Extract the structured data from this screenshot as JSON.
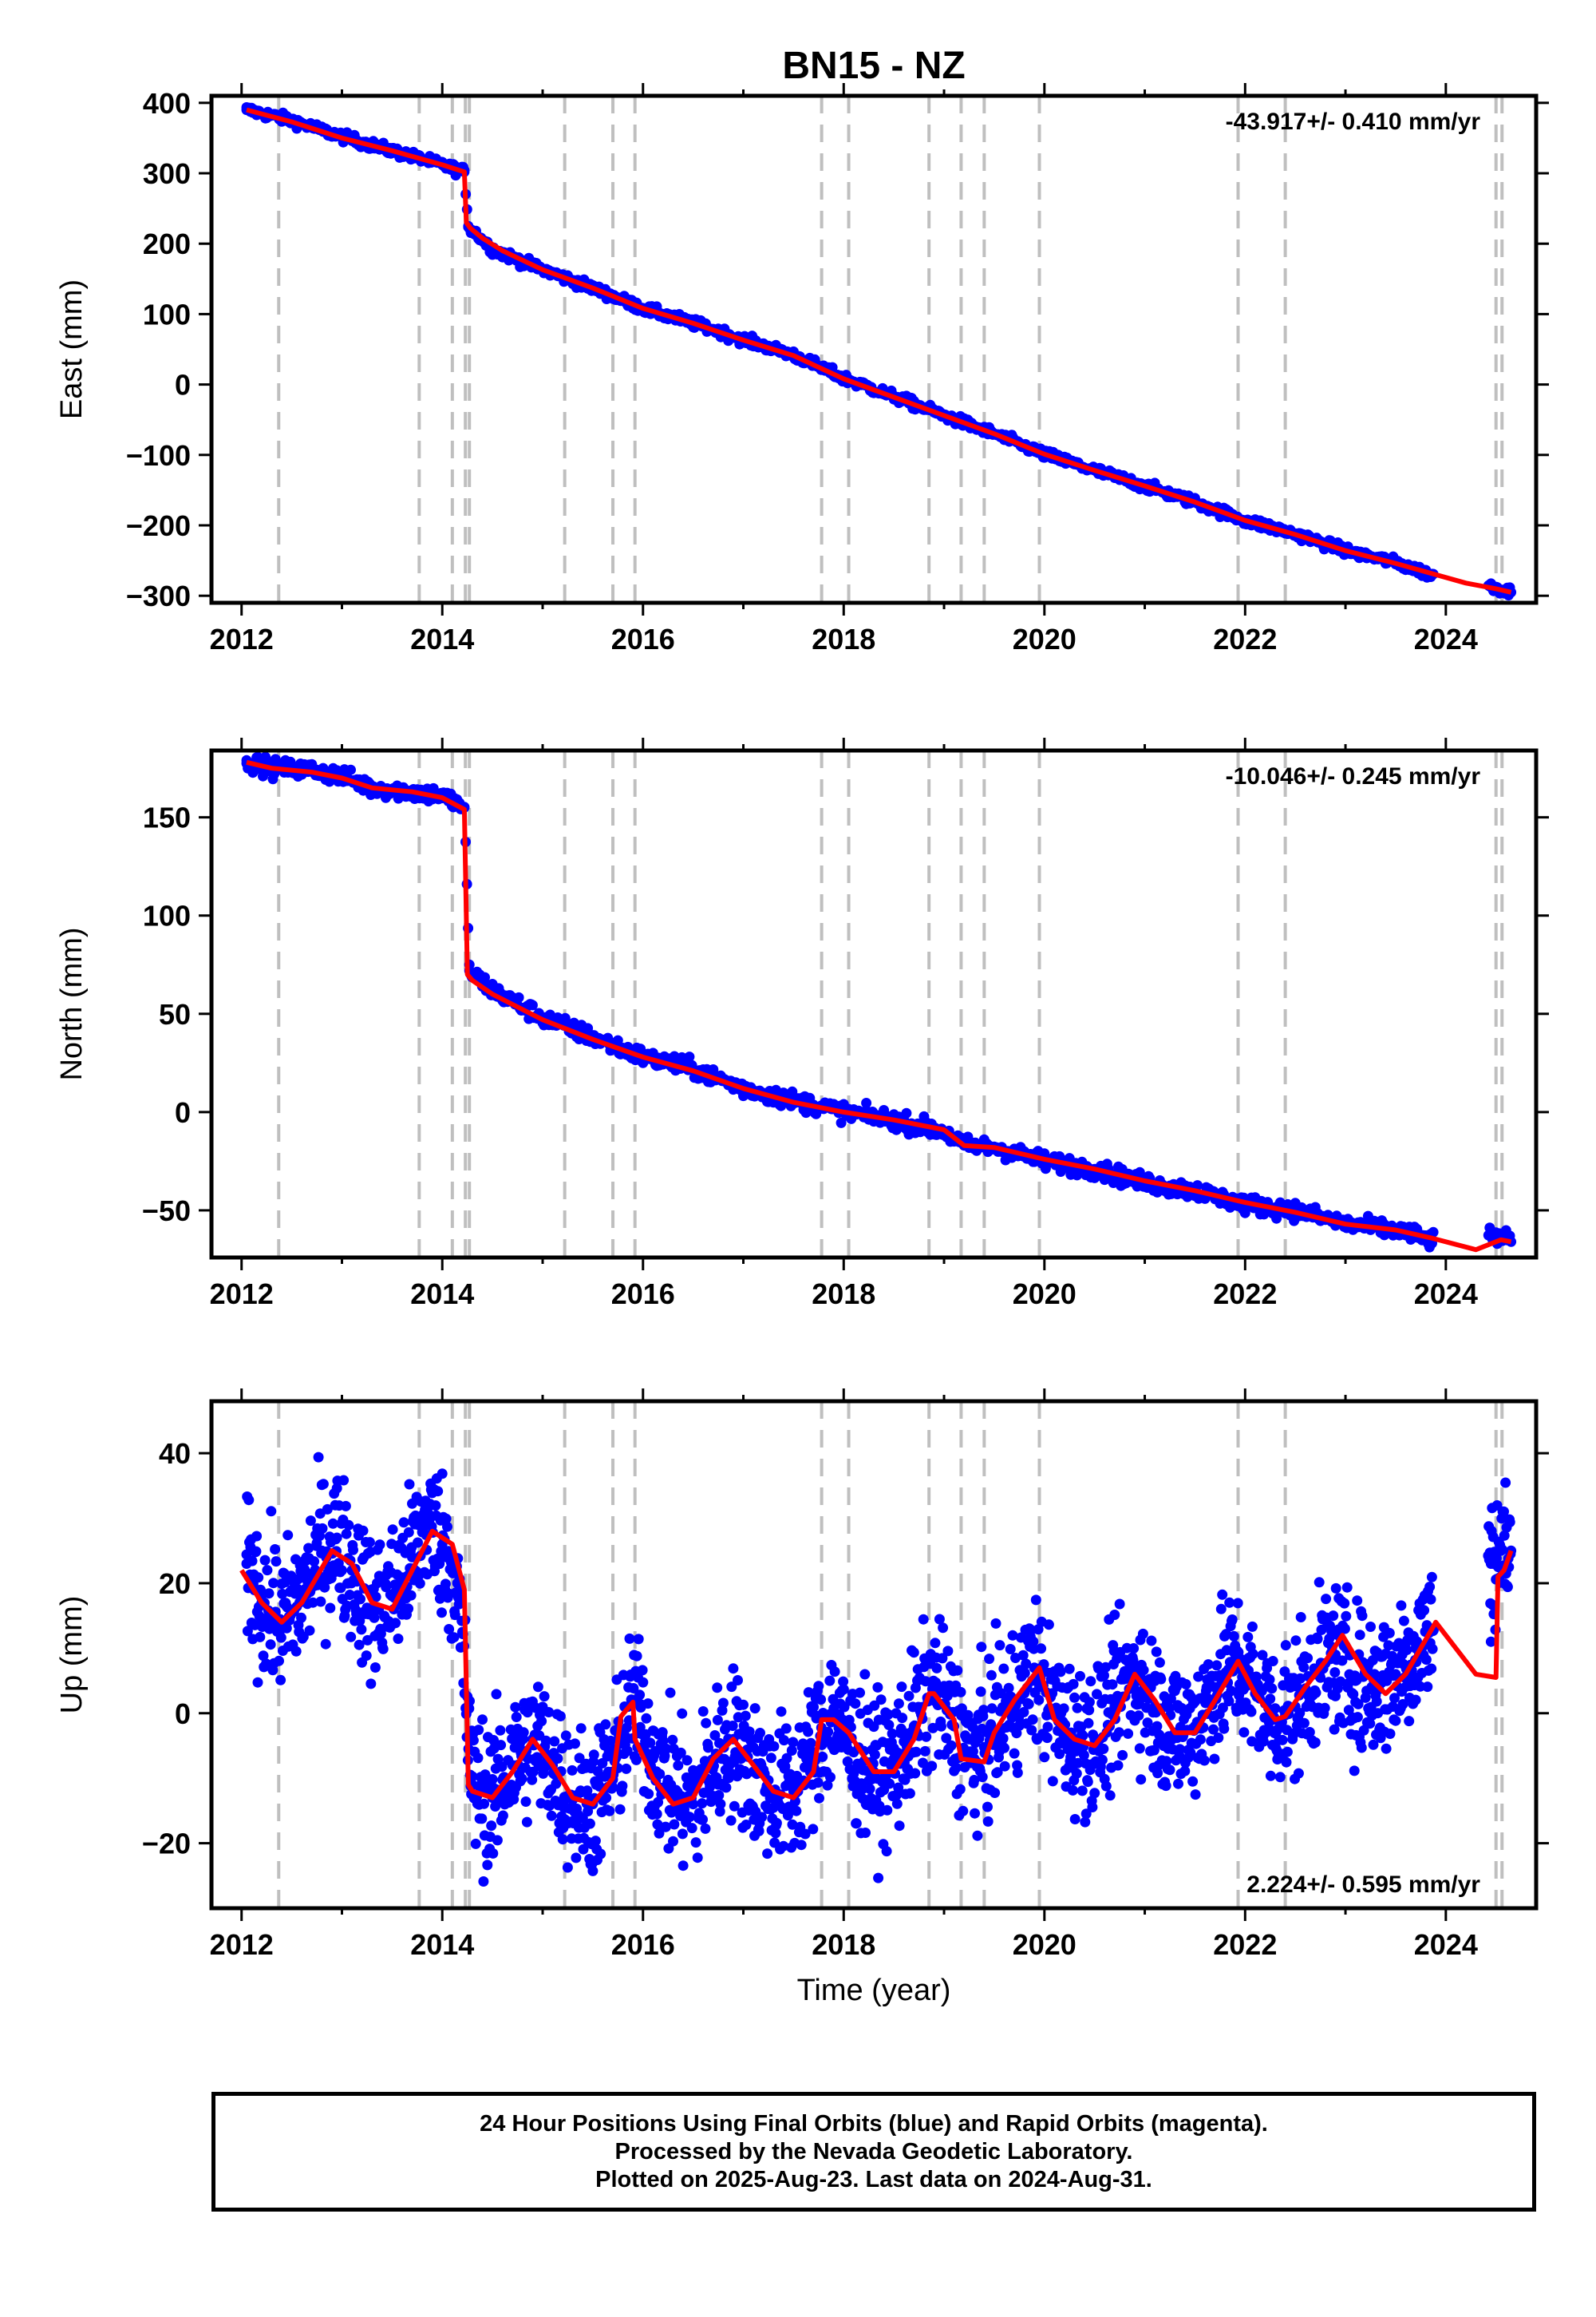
{
  "title": "BN15 - NZ",
  "colors": {
    "final_orbits": "#0000ff",
    "model": "#ff0000",
    "event_lines": "#bfbfbf",
    "frame": "#000000"
  },
  "chart_data": [
    {
      "type": "scatter",
      "ylabel": "East (mm)",
      "xlabel": "",
      "xlim": [
        2011.7,
        2024.9
      ],
      "ylim": [
        -310,
        410
      ],
      "xticks": [
        2012,
        2014,
        2016,
        2018,
        2020,
        2022,
        2024
      ],
      "yticks": [
        -300,
        -200,
        -100,
        0,
        100,
        200,
        300,
        400
      ],
      "ytick_labels": [
        "−300",
        "−200",
        "−100",
        "0",
        "100",
        "200",
        "300",
        "400"
      ],
      "annotation": "-43.917+/- 0.410 mm/yr",
      "annotation_position": "top-right",
      "series": [
        {
          "name": "Final Orbits",
          "kind": "points",
          "color": "#0000ff",
          "x": [
            2012.05,
            2012.5,
            2013.0,
            2013.5,
            2014.0,
            2014.22,
            2014.26,
            2014.5,
            2015.0,
            2015.5,
            2016.0,
            2016.5,
            2017.0,
            2017.5,
            2018.0,
            2018.5,
            2019.0,
            2019.5,
            2020.0,
            2020.5,
            2021.0,
            2021.5,
            2022.0,
            2022.5,
            2023.0,
            2023.5,
            2023.85,
            2024.5,
            2024.65
          ],
          "y": [
            390,
            375,
            352,
            332,
            312,
            302,
            225,
            192,
            163,
            137,
            108,
            87,
            64,
            42,
            9,
            -17,
            -44,
            -70,
            -99,
            -122,
            -144,
            -167,
            -193,
            -212,
            -236,
            -253,
            -270,
            -288,
            -295
          ]
        },
        {
          "name": "Model",
          "kind": "line",
          "color": "#ff0000",
          "x": [
            2012.05,
            2012.5,
            2013.0,
            2013.5,
            2014.0,
            2014.22,
            2014.24,
            2014.28,
            2014.4,
            2014.6,
            2015.0,
            2015.5,
            2016.0,
            2016.5,
            2017.0,
            2017.5,
            2018.0,
            2018.5,
            2019.0,
            2019.5,
            2020.0,
            2020.5,
            2021.0,
            2021.5,
            2022.0,
            2022.5,
            2023.0,
            2023.5,
            2023.85,
            2024.2,
            2024.5,
            2024.65
          ],
          "y": [
            390,
            373,
            350,
            332,
            312,
            302,
            230,
            222,
            208,
            190,
            163,
            137,
            108,
            87,
            63,
            41,
            8,
            -18,
            -44,
            -70,
            -99,
            -122,
            -144,
            -167,
            -193,
            -213,
            -236,
            -254,
            -268,
            -282,
            -290,
            -295
          ]
        }
      ],
      "event_lines": [
        2012.37,
        2013.77,
        2014.1,
        2014.23,
        2014.27,
        2015.22,
        2015.7,
        2015.92,
        2017.78,
        2018.05,
        2018.85,
        2019.17,
        2019.4,
        2019.95,
        2021.93,
        2022.4,
        2024.5,
        2024.56
      ]
    },
    {
      "type": "scatter",
      "ylabel": "North (mm)",
      "xlabel": "",
      "xlim": [
        2011.7,
        2024.9
      ],
      "ylim": [
        -74,
        184
      ],
      "xticks": [
        2012,
        2014,
        2016,
        2018,
        2020,
        2022,
        2024
      ],
      "yticks": [
        -50,
        0,
        50,
        100,
        150
      ],
      "ytick_labels": [
        "−50",
        "0",
        "50",
        "100",
        "150"
      ],
      "annotation": "-10.046+/- 0.245 mm/yr",
      "annotation_position": "top-right",
      "series": [
        {
          "name": "Final Orbits",
          "kind": "points",
          "color": "#0000ff",
          "x": [
            2012.05,
            2012.3,
            2012.7,
            2013.0,
            2013.3,
            2013.7,
            2014.0,
            2014.22,
            2014.27,
            2014.5,
            2015.0,
            2015.5,
            2016.0,
            2016.5,
            2017.0,
            2017.5,
            2018.0,
            2018.5,
            2019.0,
            2019.2,
            2019.5,
            2020.0,
            2020.5,
            2021.0,
            2021.5,
            2022.0,
            2022.5,
            2023.0,
            2023.5,
            2023.85,
            2024.5,
            2024.65
          ],
          "y": [
            179,
            175,
            174,
            171,
            165,
            163,
            161,
            155,
            72,
            62,
            48,
            38,
            28,
            22,
            12,
            6,
            0,
            -4,
            -10,
            -17,
            -18,
            -25,
            -29,
            -36,
            -40,
            -47,
            -50,
            -57,
            -60,
            -65,
            -63,
            -66
          ]
        },
        {
          "name": "Model",
          "kind": "line",
          "color": "#ff0000",
          "x": [
            2012.05,
            2012.3,
            2012.7,
            2013.0,
            2013.3,
            2013.7,
            2014.0,
            2014.22,
            2014.25,
            2014.3,
            2014.5,
            2015.0,
            2015.5,
            2016.0,
            2016.5,
            2017.0,
            2017.5,
            2018.0,
            2018.5,
            2019.0,
            2019.2,
            2019.5,
            2020.0,
            2020.5,
            2021.0,
            2021.5,
            2022.0,
            2022.5,
            2023.0,
            2023.5,
            2023.85,
            2024.3,
            2024.55,
            2024.65
          ],
          "y": [
            178,
            175,
            173,
            170,
            165,
            163,
            160,
            154,
            70,
            67,
            60,
            47,
            37,
            28,
            21,
            12,
            5,
            0,
            -4,
            -9,
            -17,
            -18,
            -24,
            -29,
            -35,
            -40,
            -46,
            -51,
            -57,
            -60,
            -64,
            -70,
            -65,
            -66
          ]
        }
      ],
      "event_lines": [
        2012.37,
        2013.77,
        2014.1,
        2014.23,
        2014.27,
        2015.22,
        2015.7,
        2015.92,
        2017.78,
        2018.05,
        2018.85,
        2019.17,
        2019.4,
        2019.95,
        2021.93,
        2022.4,
        2024.5,
        2024.56
      ]
    },
    {
      "type": "scatter",
      "ylabel": "Up (mm)",
      "xlabel": "Time (year)",
      "xlim": [
        2011.7,
        2024.9
      ],
      "ylim": [
        -30,
        48
      ],
      "xticks": [
        2012,
        2014,
        2016,
        2018,
        2020,
        2022,
        2024
      ],
      "yticks": [
        -20,
        0,
        20,
        40
      ],
      "ytick_labels": [
        "−20",
        "0",
        "20",
        "40"
      ],
      "annotation": "2.224+/- 0.595 mm/yr",
      "annotation_position": "bottom-right",
      "series": [
        {
          "name": "Final Orbits",
          "kind": "points",
          "color": "#0000ff",
          "x": [
            2012.05,
            2012.2,
            2012.4,
            2012.6,
            2012.8,
            2012.95,
            2013.1,
            2013.3,
            2013.5,
            2013.7,
            2013.85,
            2014.0,
            2014.15,
            2014.3,
            2014.5,
            2014.7,
            2014.9,
            2015.1,
            2015.3,
            2015.5,
            2015.7,
            2015.9,
            2016.1,
            2016.3,
            2016.5,
            2016.7,
            2016.9,
            2017.1,
            2017.3,
            2017.5,
            2017.7,
            2017.9,
            2018.1,
            2018.3,
            2018.5,
            2018.7,
            2018.9,
            2019.1,
            2019.3,
            2019.5,
            2019.7,
            2019.9,
            2020.1,
            2020.3,
            2020.5,
            2020.7,
            2020.9,
            2021.1,
            2021.3,
            2021.5,
            2021.7,
            2021.9,
            2022.1,
            2022.3,
            2022.5,
            2022.7,
            2022.9,
            2023.1,
            2023.3,
            2023.5,
            2023.7,
            2023.85,
            2024.45,
            2024.55,
            2024.65
          ],
          "y": [
            23,
            17,
            14,
            18,
            25,
            27,
            22,
            16,
            18,
            24,
            30,
            26,
            20,
            -11,
            -13,
            -8,
            -4,
            -8,
            -13,
            -14,
            -9,
            2,
            -7,
            -12,
            -14,
            -8,
            -4,
            -9,
            -12,
            -12,
            -6,
            0,
            -6,
            -9,
            -8,
            -2,
            4,
            -2,
            -7,
            -3,
            2,
            7,
            0,
            -4,
            -4,
            1,
            6,
            1,
            -3,
            -2,
            4,
            8,
            3,
            -1,
            1,
            6,
            9,
            5,
            4,
            6,
            10,
            13,
            23,
            25,
            25
          ]
        },
        {
          "name": "Model",
          "kind": "line",
          "color": "#ff0000",
          "x": [
            2012.0,
            2012.2,
            2012.4,
            2012.6,
            2012.9,
            2013.1,
            2013.3,
            2013.5,
            2013.7,
            2013.9,
            2014.1,
            2014.22,
            2014.26,
            2014.3,
            2014.5,
            2014.7,
            2014.9,
            2015.1,
            2015.3,
            2015.5,
            2015.7,
            2015.78,
            2015.9,
            2015.92,
            2016.1,
            2016.3,
            2016.5,
            2016.7,
            2016.9,
            2017.1,
            2017.3,
            2017.5,
            2017.7,
            2017.78,
            2017.9,
            2018.05,
            2018.3,
            2018.5,
            2018.7,
            2018.85,
            2018.9,
            2019.1,
            2019.17,
            2019.4,
            2019.5,
            2019.7,
            2019.95,
            2020.1,
            2020.3,
            2020.5,
            2020.7,
            2020.9,
            2021.1,
            2021.3,
            2021.5,
            2021.7,
            2021.93,
            2022.1,
            2022.3,
            2022.4,
            2022.6,
            2022.8,
            2022.97,
            2023.2,
            2023.4,
            2023.6,
            2023.9,
            2024.1,
            2024.3,
            2024.5,
            2024.52,
            2024.58,
            2024.65
          ],
          "y": [
            22,
            17,
            14,
            17,
            25,
            23,
            17,
            16,
            22,
            28,
            26,
            19,
            -11,
            -12,
            -13,
            -9,
            -4,
            -8,
            -13,
            -14,
            -10,
            -0.5,
            1.7,
            -4,
            -10,
            -14,
            -13,
            -7,
            -4,
            -8,
            -12,
            -13,
            -9,
            -1,
            -1,
            -3,
            -9,
            -9,
            -4,
            3,
            3,
            -1,
            -7,
            -7.5,
            -3,
            2,
            7,
            -1,
            -4,
            -5,
            -1,
            6,
            2,
            -3,
            -3,
            2,
            8,
            3,
            -1,
            -0.5,
            4,
            8,
            12,
            6,
            3,
            6,
            14,
            10,
            6,
            5.5,
            21,
            22,
            25
          ]
        }
      ],
      "event_lines": [
        2012.37,
        2013.77,
        2014.1,
        2014.23,
        2014.27,
        2015.22,
        2015.7,
        2015.92,
        2017.78,
        2018.05,
        2018.85,
        2019.17,
        2019.4,
        2019.95,
        2021.93,
        2022.4,
        2024.5,
        2024.56
      ]
    }
  ],
  "footer": {
    "line1": "24 Hour Positions Using Final Orbits (blue) and Rapid Orbits (magenta).",
    "line2": "Processed by the Nevada Geodetic Laboratory.",
    "line3": "Plotted on 2025-Aug-23. Last data on 2024-Aug-31."
  }
}
